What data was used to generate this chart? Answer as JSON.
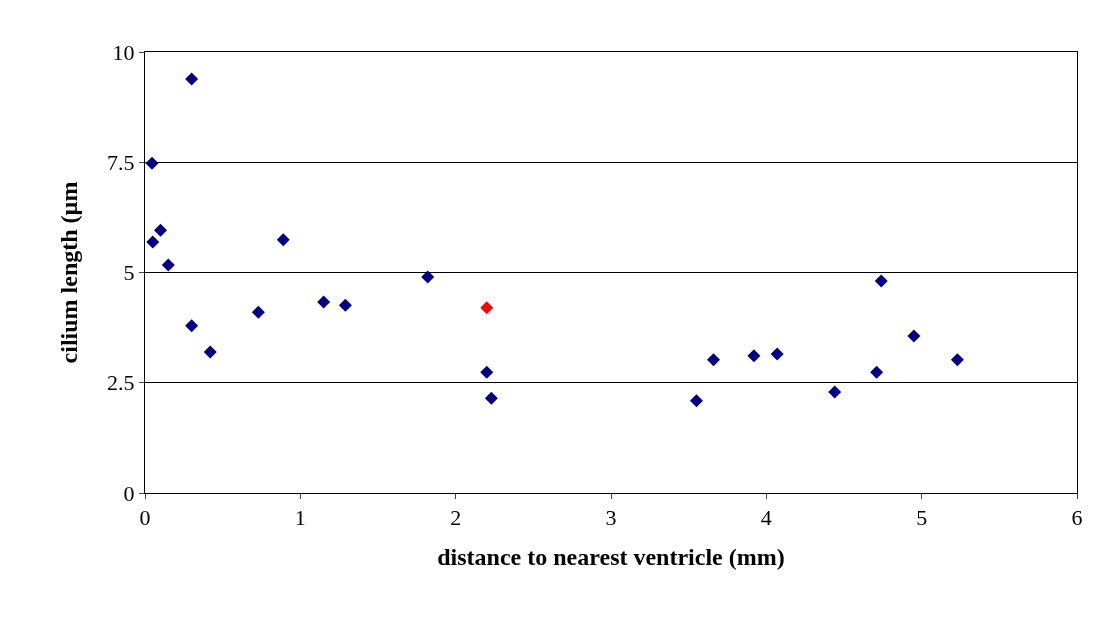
{
  "chart_data": {
    "type": "scatter",
    "xlabel": "distance to nearest ventricle (mm)",
    "ylabel": "cilium length (µm",
    "xlim": [
      0,
      6
    ],
    "xticks": [
      0,
      1,
      2,
      3,
      4,
      5,
      6
    ],
    "ylim": [
      0,
      10
    ],
    "yticks": [
      0,
      2.5,
      5,
      7.5,
      10
    ],
    "grid": "y",
    "marker": "diamond",
    "series": [
      {
        "color": "#000080",
        "x": [
          0.045,
          0.05,
          0.1,
          0.15,
          0.3,
          0.3,
          0.42,
          0.73,
          0.89,
          1.15,
          1.29,
          1.82,
          2.2,
          2.23,
          3.55,
          3.66,
          3.92,
          4.07,
          4.44,
          4.71,
          4.74,
          4.95,
          5.23
        ],
        "values": [
          7.48,
          5.69,
          5.96,
          5.17,
          9.39,
          3.79,
          3.2,
          4.1,
          5.74,
          4.33,
          4.26,
          4.9,
          2.74,
          2.15,
          2.09,
          3.02,
          3.11,
          3.15,
          2.29,
          2.74,
          4.81,
          3.56,
          3.02
        ]
      },
      {
        "color": "#ff0000",
        "x": [
          2.2
        ],
        "values": [
          4.2
        ]
      }
    ]
  }
}
